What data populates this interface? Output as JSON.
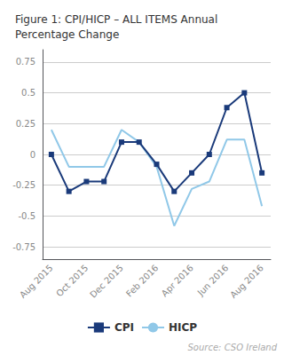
{
  "chart_data": {
    "type": "line",
    "title": "Figure 1: CPI/HICP – ALL ITEMS Annual\nPercentage Change",
    "annotations": [
      "Source: CSO Ireland"
    ],
    "categories": [
      "Aug 2015",
      null,
      "Oct 2015",
      null,
      "Dec 2015",
      null,
      "Feb 2016",
      null,
      "Apr 2016",
      null,
      "Jun 2016",
      null,
      "Aug 2016"
    ],
    "series": [
      {
        "name": "CPI",
        "color": "#1a3a7a",
        "marker": "square",
        "values": [
          0.0,
          -0.3,
          -0.22,
          -0.22,
          0.1,
          0.1,
          -0.08,
          -0.3,
          -0.15,
          0.0,
          0.38,
          0.5,
          -0.15
        ]
      },
      {
        "name": "HICP",
        "color": "#90c8e8",
        "marker": "none",
        "values": [
          0.2,
          -0.1,
          -0.1,
          -0.1,
          0.2,
          0.1,
          -0.1,
          -0.58,
          -0.28,
          -0.22,
          0.12,
          0.12,
          -0.42
        ]
      }
    ],
    "ylim": [
      -0.85,
      0.85
    ],
    "yticks": [
      -0.75,
      -0.5,
      -0.25,
      0,
      0.25,
      0.5,
      0.75
    ],
    "grid": true,
    "legend": "bottom"
  }
}
